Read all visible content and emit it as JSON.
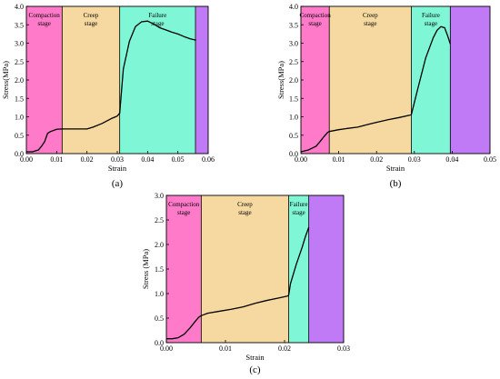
{
  "colors": {
    "compaction": "#ff7ac8",
    "creep": "#f5d9a0",
    "failure": "#7ff7d6",
    "post": "#c07af5",
    "curve": "#000000"
  },
  "chart_data": [
    {
      "type": "line",
      "panel_label": "(a)",
      "xlabel": "Strain",
      "ylabel": "Stress(MPa)",
      "xlim": [
        0,
        0.06
      ],
      "ylim": [
        0,
        4.0
      ],
      "xticks": [
        0.0,
        0.01,
        0.02,
        0.03,
        0.04,
        0.05,
        0.06
      ],
      "xtick_labels": [
        "0.00",
        "0.01",
        "0.02",
        "0.03",
        "0.04",
        "0.05",
        "0.06"
      ],
      "yticks": [
        0.0,
        0.5,
        1.0,
        1.5,
        2.0,
        2.5,
        3.0,
        3.5,
        4.0
      ],
      "ytick_labels": [
        "0.0",
        "0.5",
        "1.0",
        "1.5",
        "2.0",
        "2.5",
        "3.0",
        "3.5",
        "4.0"
      ],
      "stages": [
        {
          "key": "compaction",
          "label": [
            "Compaction",
            "stage"
          ],
          "x0": 0,
          "x1": 0.0118
        },
        {
          "key": "creep",
          "label": [
            "Creep",
            "stage"
          ],
          "x0": 0.0118,
          "x1": 0.0308
        },
        {
          "key": "failure",
          "label": [
            "Failure",
            "stage"
          ],
          "x0": 0.0308,
          "x1": 0.0558
        },
        {
          "key": "post",
          "label": [],
          "x0": 0.0558,
          "x1": 0.06
        }
      ],
      "series": [
        {
          "x": [
            0,
            0.002,
            0.004,
            0.005,
            0.006,
            0.007,
            0.008,
            0.009,
            0.01,
            0.0118,
            0.015,
            0.02,
            0.022,
            0.025,
            0.028,
            0.03,
            0.0308,
            0.032,
            0.034,
            0.036,
            0.038,
            0.04,
            0.042,
            0.044,
            0.046,
            0.048,
            0.05,
            0.052,
            0.054,
            0.056
          ],
          "y": [
            0.05,
            0.05,
            0.1,
            0.2,
            0.32,
            0.55,
            0.6,
            0.63,
            0.66,
            0.67,
            0.67,
            0.67,
            0.72,
            0.82,
            0.95,
            1.02,
            1.1,
            2.3,
            3.05,
            3.45,
            3.58,
            3.6,
            3.52,
            3.42,
            3.36,
            3.3,
            3.25,
            3.18,
            3.12,
            3.08
          ]
        }
      ]
    },
    {
      "type": "line",
      "panel_label": "(b)",
      "xlabel": "Strain",
      "ylabel": "Stress(MPa)",
      "xlim": [
        0,
        0.05
      ],
      "ylim": [
        0,
        4.0
      ],
      "xticks": [
        0.0,
        0.01,
        0.02,
        0.03,
        0.04,
        0.05
      ],
      "xtick_labels": [
        "0.00",
        "0.01",
        "0.02",
        "0.03",
        "0.04",
        "0.05"
      ],
      "yticks": [
        0.0,
        0.5,
        1.0,
        1.5,
        2.0,
        2.5,
        3.0,
        3.5,
        4.0
      ],
      "ytick_labels": [
        "0.0",
        "0.5",
        "1.0",
        "1.5",
        "2.0",
        "2.5",
        "3.0",
        "3.5",
        "4.0"
      ],
      "stages": [
        {
          "key": "compaction",
          "label": [
            "Compaction",
            "stage"
          ],
          "x0": 0,
          "x1": 0.0075
        },
        {
          "key": "creep",
          "label": [
            "Creep",
            "stage"
          ],
          "x0": 0.0075,
          "x1": 0.0292
        },
        {
          "key": "failure",
          "label": [
            "Failure",
            "stage"
          ],
          "x0": 0.0292,
          "x1": 0.0395
        },
        {
          "key": "post",
          "label": [],
          "x0": 0.0395,
          "x1": 0.05
        }
      ],
      "series": [
        {
          "x": [
            0,
            0.002,
            0.004,
            0.005,
            0.006,
            0.007,
            0.0075,
            0.01,
            0.012,
            0.015,
            0.018,
            0.02,
            0.023,
            0.026,
            0.029,
            0.0292,
            0.031,
            0.033,
            0.035,
            0.036,
            0.037,
            0.038,
            0.0388,
            0.0395
          ],
          "y": [
            0.05,
            0.1,
            0.2,
            0.32,
            0.45,
            0.57,
            0.6,
            0.65,
            0.68,
            0.72,
            0.8,
            0.85,
            0.92,
            0.98,
            1.05,
            1.06,
            1.8,
            2.6,
            3.15,
            3.35,
            3.45,
            3.42,
            3.2,
            2.98
          ]
        }
      ]
    },
    {
      "type": "line",
      "panel_label": "(c)",
      "xlabel": "Strain",
      "ylabel": "Stress (MPa)",
      "xlim": [
        0,
        0.03
      ],
      "ylim": [
        0,
        3.0
      ],
      "xticks": [
        0.0,
        0.01,
        0.02,
        0.03
      ],
      "xtick_labels": [
        "0.00",
        "0.01",
        "0.02",
        "0.03"
      ],
      "yticks": [
        0.0,
        0.5,
        1.0,
        1.5,
        2.0,
        2.5,
        3.0
      ],
      "ytick_labels": [
        "0.0",
        "0.5",
        "1.0",
        "1.5",
        "2.0",
        "2.5",
        "3.0"
      ],
      "stages": [
        {
          "key": "compaction",
          "label": [
            "Compaction",
            "stage"
          ],
          "x0": 0,
          "x1": 0.0059
        },
        {
          "key": "creep",
          "label": [
            "Creep",
            "stage"
          ],
          "x0": 0.0059,
          "x1": 0.0207
        },
        {
          "key": "failure",
          "label": [
            "Failure",
            "stage"
          ],
          "x0": 0.0207,
          "x1": 0.0241
        },
        {
          "key": "post",
          "label": [],
          "x0": 0.0241,
          "x1": 0.03
        }
      ],
      "series": [
        {
          "x": [
            0,
            0.001,
            0.002,
            0.003,
            0.004,
            0.005,
            0.0055,
            0.0059,
            0.007,
            0.009,
            0.011,
            0.013,
            0.015,
            0.017,
            0.019,
            0.0205,
            0.0207,
            0.021,
            0.022,
            0.023,
            0.0235,
            0.0241
          ],
          "y": [
            0.08,
            0.08,
            0.1,
            0.17,
            0.3,
            0.45,
            0.52,
            0.55,
            0.6,
            0.64,
            0.68,
            0.73,
            0.8,
            0.86,
            0.91,
            0.95,
            0.97,
            1.2,
            1.6,
            1.95,
            2.15,
            2.35
          ]
        }
      ]
    }
  ]
}
